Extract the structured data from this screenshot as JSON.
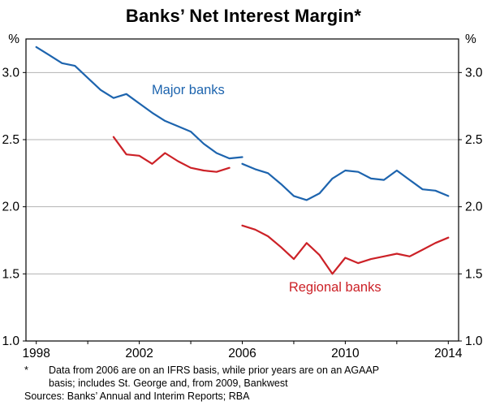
{
  "title": "Banks’ Net Interest Margin*",
  "chart_data": {
    "type": "line",
    "title": "Banks’ Net Interest Margin*",
    "y_unit": "%",
    "xlim": [
      1997.6,
      2014.4
    ],
    "ylim": [
      1.0,
      3.25
    ],
    "y_ticks": [
      1.0,
      1.5,
      2.0,
      2.5,
      3.0
    ],
    "x_ticks": [
      1998,
      2002,
      2006,
      2010,
      2014
    ],
    "grid": true,
    "legend_position": "inline-labels",
    "colors": {
      "major": "#1d64ae",
      "regional": "#cc2127",
      "grid": "#b3b3b3",
      "frame": "#000000"
    },
    "series": [
      {
        "name": "Major banks (AGAAP, pre-2006)",
        "color": "#1d64ae",
        "x": [
          1998,
          1998.5,
          1999,
          1999.5,
          2000,
          2000.5,
          2001,
          2001.5,
          2002,
          2002.5,
          2003,
          2003.5,
          2004,
          2004.5,
          2005,
          2005.5,
          2006
        ],
        "values": [
          3.19,
          3.13,
          3.07,
          3.05,
          2.96,
          2.87,
          2.81,
          2.84,
          2.77,
          2.7,
          2.64,
          2.6,
          2.56,
          2.47,
          2.4,
          2.36,
          2.37
        ]
      },
      {
        "name": "Major banks (IFRS, from 2006)",
        "color": "#1d64ae",
        "x": [
          2006,
          2006.5,
          2007,
          2007.5,
          2008,
          2008.5,
          2009,
          2009.5,
          2010,
          2010.5,
          2011,
          2011.5,
          2012,
          2012.5,
          2013,
          2013.5,
          2014
        ],
        "values": [
          2.32,
          2.28,
          2.25,
          2.17,
          2.08,
          2.05,
          2.1,
          2.21,
          2.27,
          2.26,
          2.21,
          2.2,
          2.27,
          2.2,
          2.13,
          2.12,
          2.08
        ]
      },
      {
        "name": "Regional banks (AGAAP, pre-2006)",
        "color": "#cc2127",
        "x": [
          2001,
          2001.5,
          2002,
          2002.5,
          2003,
          2003.5,
          2004,
          2004.5,
          2005,
          2005.5
        ],
        "values": [
          2.52,
          2.39,
          2.38,
          2.32,
          2.4,
          2.34,
          2.29,
          2.27,
          2.26,
          2.29
        ]
      },
      {
        "name": "Regional banks (IFRS, from 2006)",
        "color": "#cc2127",
        "x": [
          2006,
          2006.5,
          2007,
          2007.5,
          2008,
          2008.5,
          2009,
          2009.5,
          2010,
          2010.5,
          2011,
          2011.5,
          2012,
          2012.5,
          2013,
          2013.5,
          2014
        ],
        "values": [
          1.86,
          1.83,
          1.78,
          1.7,
          1.61,
          1.73,
          1.64,
          1.5,
          1.62,
          1.58,
          1.61,
          1.63,
          1.65,
          1.63,
          1.68,
          1.73,
          1.77
        ]
      }
    ],
    "labels": [
      {
        "text": "Major banks",
        "color": "#1d64ae",
        "x": 2003.9,
        "y": 2.84
      },
      {
        "text": "Regional banks",
        "color": "#cc2127",
        "x": 2009.6,
        "y": 1.37
      }
    ]
  },
  "footnote": {
    "marker": "*",
    "lines": [
      "Data from 2006 are on an IFRS basis, while prior years are on an AGAAP",
      "basis; includes St. George and, from 2009, Bankwest"
    ],
    "sources": "Sources: Banks’ Annual and Interim Reports; RBA"
  }
}
